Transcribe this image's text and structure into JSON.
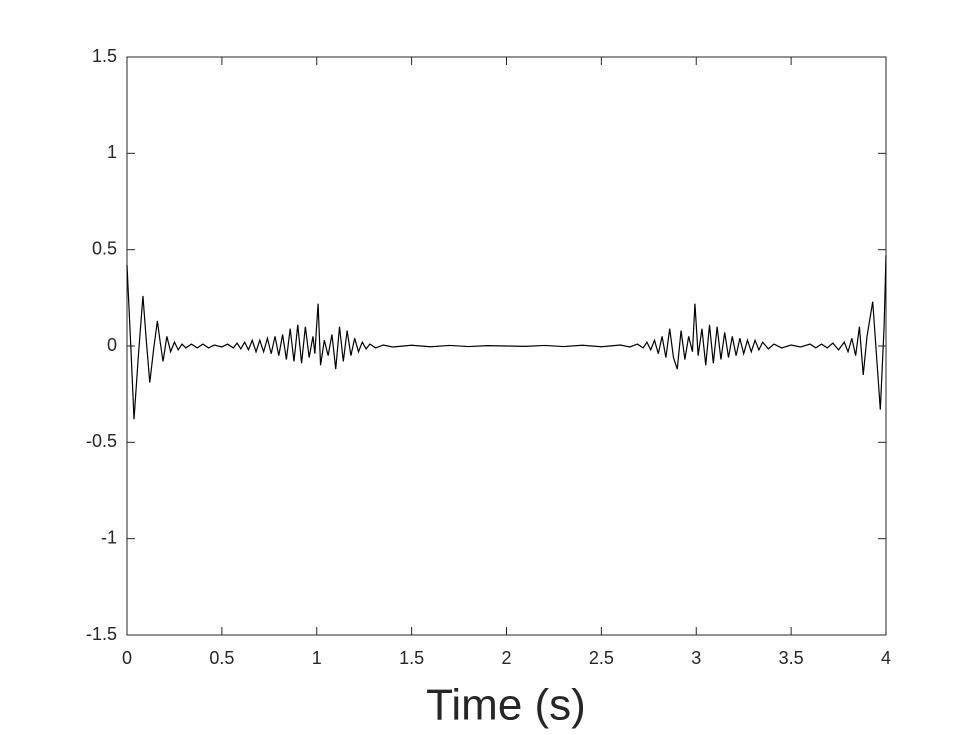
{
  "chart_data": {
    "type": "line",
    "x_label": "Time (s)",
    "x": [
      0,
      0.02,
      0.037,
      0.06,
      0.084,
      0.1,
      0.12,
      0.14,
      0.16,
      0.175,
      0.19,
      0.21,
      0.23,
      0.25,
      0.27,
      0.29,
      0.31,
      0.34,
      0.37,
      0.4,
      0.43,
      0.46,
      0.5,
      0.53,
      0.56,
      0.58,
      0.6,
      0.62,
      0.64,
      0.66,
      0.68,
      0.7,
      0.72,
      0.74,
      0.76,
      0.78,
      0.8,
      0.82,
      0.84,
      0.86,
      0.88,
      0.9,
      0.92,
      0.94,
      0.96,
      0.98,
      0.99,
      1.007,
      1.02,
      1.04,
      1.06,
      1.08,
      1.1,
      1.12,
      1.14,
      1.16,
      1.18,
      1.2,
      1.22,
      1.24,
      1.26,
      1.28,
      1.31,
      1.35,
      1.4,
      1.5,
      1.6,
      1.7,
      1.8,
      1.9,
      2.0,
      2.1,
      2.2,
      2.3,
      2.4,
      2.5,
      2.6,
      2.65,
      2.69,
      2.72,
      2.74,
      2.76,
      2.78,
      2.8,
      2.82,
      2.84,
      2.86,
      2.88,
      2.9,
      2.92,
      2.94,
      2.96,
      2.98,
      2.993,
      3.01,
      3.03,
      3.05,
      3.07,
      3.09,
      3.11,
      3.13,
      3.15,
      3.17,
      3.19,
      3.21,
      3.23,
      3.25,
      3.27,
      3.29,
      3.31,
      3.33,
      3.35,
      3.38,
      3.41,
      3.45,
      3.5,
      3.55,
      3.6,
      3.63,
      3.66,
      3.69,
      3.72,
      3.75,
      3.78,
      3.8,
      3.82,
      3.84,
      3.86,
      3.88,
      3.9,
      3.93,
      3.95,
      3.97,
      3.99,
      4.0
    ],
    "values": [
      0.42,
      0,
      -0.38,
      -0.05,
      0.26,
      0.05,
      -0.19,
      -0.02,
      0.13,
      0.02,
      -0.08,
      0.05,
      -0.03,
      0.02,
      -0.02,
      0.01,
      -0.01,
      0.01,
      -0.01,
      0.01,
      -0.01,
      0.005,
      -0.005,
      0.01,
      -0.01,
      0.015,
      -0.015,
      0.02,
      -0.02,
      0.03,
      -0.03,
      0.03,
      -0.03,
      0.04,
      -0.04,
      0.05,
      -0.05,
      0.06,
      -0.07,
      0.09,
      -0.08,
      0.11,
      -0.09,
      0.1,
      -0.06,
      0.05,
      -0.04,
      0.22,
      -0.1,
      0.03,
      -0.05,
      0.06,
      -0.12,
      0.1,
      -0.08,
      0.08,
      -0.05,
      0.04,
      -0.03,
      0.02,
      -0.015,
      0.01,
      -0.01,
      0.005,
      -0.005,
      0.004,
      -0.004,
      0.003,
      -0.003,
      0.002,
      0,
      -0.002,
      0.003,
      -0.003,
      0.004,
      -0.004,
      0.005,
      -0.005,
      0.01,
      -0.01,
      0.02,
      -0.02,
      0.03,
      -0.04,
      0.05,
      -0.06,
      0.09,
      -0.06,
      -0.12,
      0.08,
      -0.07,
      0.05,
      -0.03,
      0.22,
      -0.05,
      0.09,
      -0.1,
      0.11,
      -0.09,
      0.1,
      -0.07,
      0.07,
      -0.06,
      0.05,
      -0.05,
      0.04,
      -0.04,
      0.03,
      -0.03,
      0.03,
      -0.02,
      0.02,
      -0.015,
      0.01,
      -0.01,
      0.005,
      -0.005,
      0.01,
      -0.01,
      0.01,
      -0.01,
      0.015,
      -0.02,
      0.02,
      -0.03,
      0.04,
      -0.05,
      0.1,
      -0.15,
      0.05,
      0.23,
      -0.05,
      -0.33,
      0.1,
      0.47
    ],
    "color": "#000000",
    "xlim": [
      0,
      4
    ],
    "xticks": [
      0,
      0.5,
      1,
      1.5,
      2,
      2.5,
      3,
      3.5,
      4
    ],
    "ylim": [
      -1.5,
      1.5
    ],
    "yticks": [
      -1.5,
      -1,
      -0.5,
      0,
      0.5,
      1,
      1.5
    ]
  }
}
